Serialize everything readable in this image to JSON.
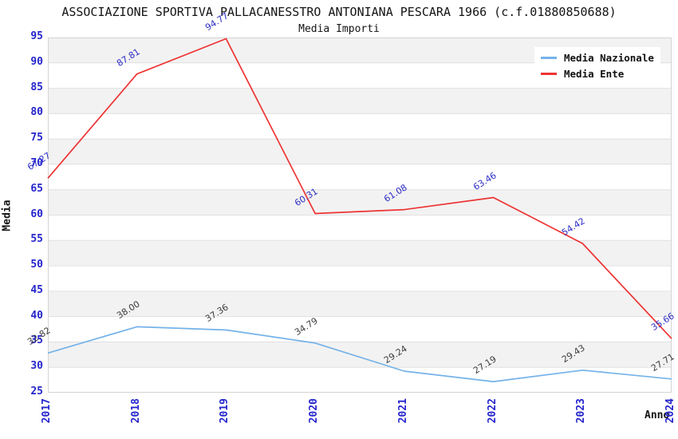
{
  "header": {
    "title": "ASSOCIAZIONE SPORTIVA PALLACANESSTRO ANTONIANA PESCARA 1966 (c.f.01880850688)",
    "subtitle": "Media Importi"
  },
  "chart_data": {
    "type": "line",
    "title": "ASSOCIAZIONE SPORTIVA PALLACANESSTRO ANTONIANA PESCARA 1966 (c.f.01880850688)",
    "subtitle": "Media Importi",
    "x": [
      2017,
      2018,
      2019,
      2020,
      2021,
      2022,
      2023,
      2024
    ],
    "series": [
      {
        "name": "Media Nazionale",
        "values": [
          32.82,
          38.0,
          37.36,
          34.79,
          29.24,
          27.19,
          29.43,
          27.71
        ],
        "line_color": "#74b2e8",
        "label_color": "#3c3c3c"
      },
      {
        "name": "Media Ente",
        "values": [
          67.27,
          87.81,
          94.77,
          60.31,
          61.08,
          63.46,
          54.42,
          35.66
        ],
        "line_color": "#ee3333",
        "label_color": "#2b2bc4"
      }
    ],
    "xlabel": "Anno",
    "ylabel": "Media",
    "ylim": [
      25,
      95
    ],
    "ytick_step": 5,
    "grid": "horizontal-bands",
    "legend_position": "top-right",
    "tick_label_color": "#2424cc",
    "band_color": "#f2f2f2",
    "grid_line_color": "#e0e0e0",
    "plot_border_color": "#d4d4d4"
  }
}
